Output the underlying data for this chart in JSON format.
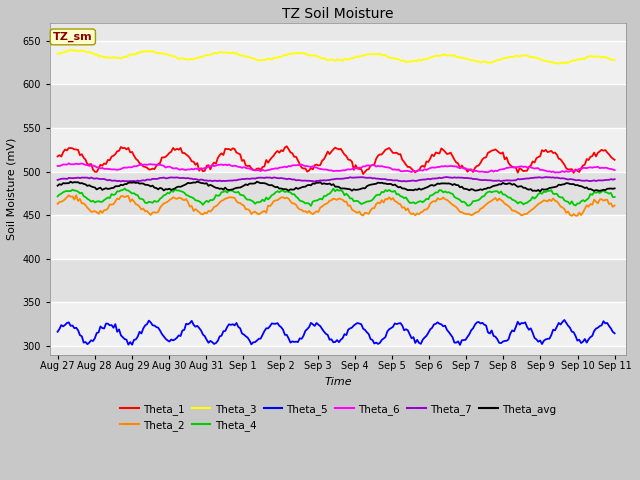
{
  "title": "TZ Soil Moisture",
  "xlabel": "Time",
  "ylabel": "Soil Moisture (mV)",
  "annotation": "TZ_sm",
  "ylim": [
    290,
    670
  ],
  "yticks": [
    300,
    350,
    400,
    450,
    500,
    550,
    600,
    650
  ],
  "num_points": 300,
  "figsize": [
    6.4,
    4.8
  ],
  "dpi": 100,
  "series": {
    "Theta_1": {
      "color": "#ff0000",
      "base": 515,
      "amp": 12,
      "freq": 0.7,
      "trend": -3.0
    },
    "Theta_2": {
      "color": "#ff8800",
      "base": 462,
      "amp": 9,
      "freq": 0.7,
      "trend": -3.0
    },
    "Theta_3": {
      "color": "#ffff00",
      "base": 635,
      "amp": 4,
      "freq": 0.5,
      "trend": -7.0
    },
    "Theta_4": {
      "color": "#00cc00",
      "base": 472,
      "amp": 7,
      "freq": 0.7,
      "trend": -2.0
    },
    "Theta_5": {
      "color": "#0000ff",
      "base": 315,
      "amp": 11,
      "freq": 0.9,
      "trend": 0.0
    },
    "Theta_6": {
      "color": "#ff00ff",
      "base": 506,
      "amp": 3,
      "freq": 0.5,
      "trend": -4.0
    },
    "Theta_7": {
      "color": "#9900cc",
      "base": 491,
      "amp": 2,
      "freq": 0.4,
      "trend": 0.5
    },
    "Theta_avg": {
      "color": "#000000",
      "base": 484,
      "amp": 4,
      "freq": 0.6,
      "trend": -2.0
    }
  },
  "xtick_labels": [
    "Aug 27",
    "Aug 28",
    "Aug 29",
    "Aug 30",
    "Aug 31",
    "Sep 1",
    "Sep 2",
    "Sep 3",
    "Sep 4",
    "Sep 5",
    "Sep 6",
    "Sep 7",
    "Sep 8",
    "Sep 9",
    "Sep 10",
    "Sep 11"
  ],
  "xtick_positions": [
    0,
    1,
    2,
    3,
    4,
    5,
    6,
    7,
    8,
    9,
    10,
    11,
    12,
    13,
    14,
    15
  ]
}
